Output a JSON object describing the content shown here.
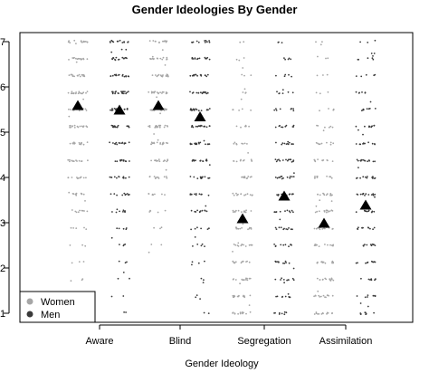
{
  "chart_data": {
    "type": "scatter",
    "title": "Gender Ideologies By Gender",
    "xlabel": "Gender Ideology",
    "ylabel": "",
    "categories": [
      "Aware",
      "Blind",
      "Segregation",
      "Assimilation"
    ],
    "ylim": [
      0.8,
      7.2
    ],
    "yticks": [
      1,
      2,
      3,
      4,
      5,
      6,
      7
    ],
    "grid": false,
    "legend_position": "bottom-left",
    "colors": {
      "Women": "#a6a6a6",
      "Men": "#3a3a3a",
      "mean_marker": "#000000"
    },
    "series": [
      {
        "name": "Women",
        "marker": "point",
        "means": [
          5.6,
          5.6,
          3.1,
          3.0
        ]
      },
      {
        "name": "Men",
        "marker": "point",
        "means": [
          5.5,
          5.35,
          3.6,
          3.4
        ]
      }
    ],
    "score_distribution": {
      "Women": [
        [
          0.01,
          0.01,
          0.01,
          0.02,
          0.02,
          0.03,
          0.05,
          0.06,
          0.07,
          0.08,
          0.09,
          0.1,
          0.11,
          0.11,
          0.1,
          0.09,
          0.08
        ],
        [
          0.0,
          0.0,
          0.0,
          0.0,
          0.01,
          0.02,
          0.03,
          0.05,
          0.07,
          0.09,
          0.11,
          0.12,
          0.12,
          0.11,
          0.1,
          0.09,
          0.08
        ],
        [
          0.08,
          0.08,
          0.08,
          0.08,
          0.08,
          0.08,
          0.08,
          0.08,
          0.07,
          0.06,
          0.05,
          0.04,
          0.03,
          0.02,
          0.02,
          0.01,
          0.01
        ],
        [
          0.08,
          0.08,
          0.08,
          0.08,
          0.08,
          0.08,
          0.08,
          0.08,
          0.07,
          0.06,
          0.05,
          0.04,
          0.03,
          0.02,
          0.02,
          0.01,
          0.01
        ]
      ],
      "Men": [
        [
          0.01,
          0.01,
          0.01,
          0.02,
          0.02,
          0.03,
          0.05,
          0.06,
          0.07,
          0.08,
          0.09,
          0.1,
          0.11,
          0.11,
          0.1,
          0.09,
          0.08
        ],
        [
          0.01,
          0.01,
          0.01,
          0.02,
          0.03,
          0.04,
          0.06,
          0.07,
          0.08,
          0.09,
          0.1,
          0.11,
          0.11,
          0.1,
          0.09,
          0.08,
          0.07
        ],
        [
          0.05,
          0.05,
          0.05,
          0.06,
          0.06,
          0.07,
          0.07,
          0.08,
          0.08,
          0.08,
          0.07,
          0.06,
          0.05,
          0.04,
          0.03,
          0.03,
          0.02
        ],
        [
          0.05,
          0.05,
          0.05,
          0.06,
          0.06,
          0.07,
          0.07,
          0.08,
          0.08,
          0.08,
          0.07,
          0.06,
          0.05,
          0.04,
          0.03,
          0.03,
          0.02
        ]
      ]
    }
  }
}
